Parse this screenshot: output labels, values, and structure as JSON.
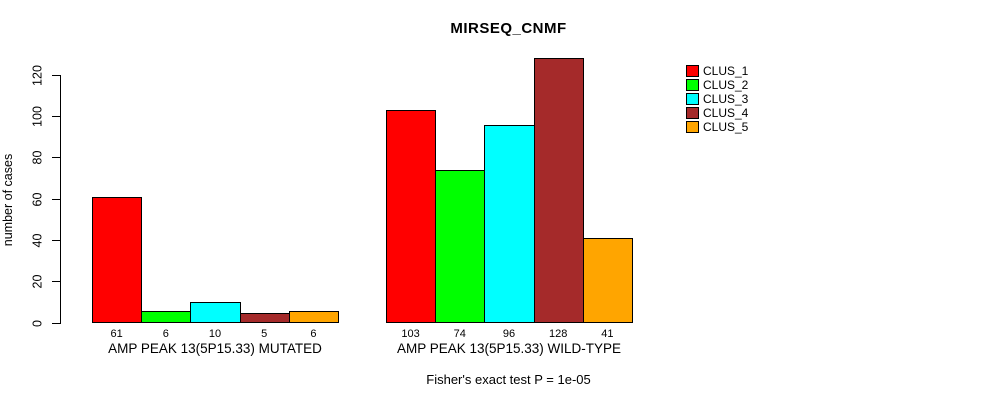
{
  "chart_data": {
    "type": "bar",
    "title": "MIRSEQ_CNMF",
    "ylabel": "number of cases",
    "xlabel": "",
    "ylim": [
      0,
      130
    ],
    "yticks": [
      0,
      20,
      40,
      60,
      80,
      100,
      120
    ],
    "grid": false,
    "legend_position": "right",
    "series": [
      {
        "name": "CLUS_1",
        "color": "#FF0000",
        "values": [
          61,
          103
        ]
      },
      {
        "name": "CLUS_2",
        "color": "#00FF00",
        "values": [
          6,
          74
        ]
      },
      {
        "name": "CLUS_3",
        "color": "#00FFFF",
        "values": [
          10,
          96
        ]
      },
      {
        "name": "CLUS_4",
        "color": "#A52A2A",
        "values": [
          5,
          128
        ]
      },
      {
        "name": "CLUS_5",
        "color": "#FFA500",
        "values": [
          6,
          41
        ]
      }
    ],
    "groups": [
      {
        "label": "AMP PEAK 13(5P15.33) MUTATED",
        "values": [
          61,
          6,
          10,
          5,
          6
        ]
      },
      {
        "label": "AMP PEAK 13(5P15.33) WILD-TYPE",
        "values": [
          103,
          74,
          96,
          128,
          41
        ]
      }
    ],
    "annotation": "Fisher's exact test P = 1e-05"
  }
}
